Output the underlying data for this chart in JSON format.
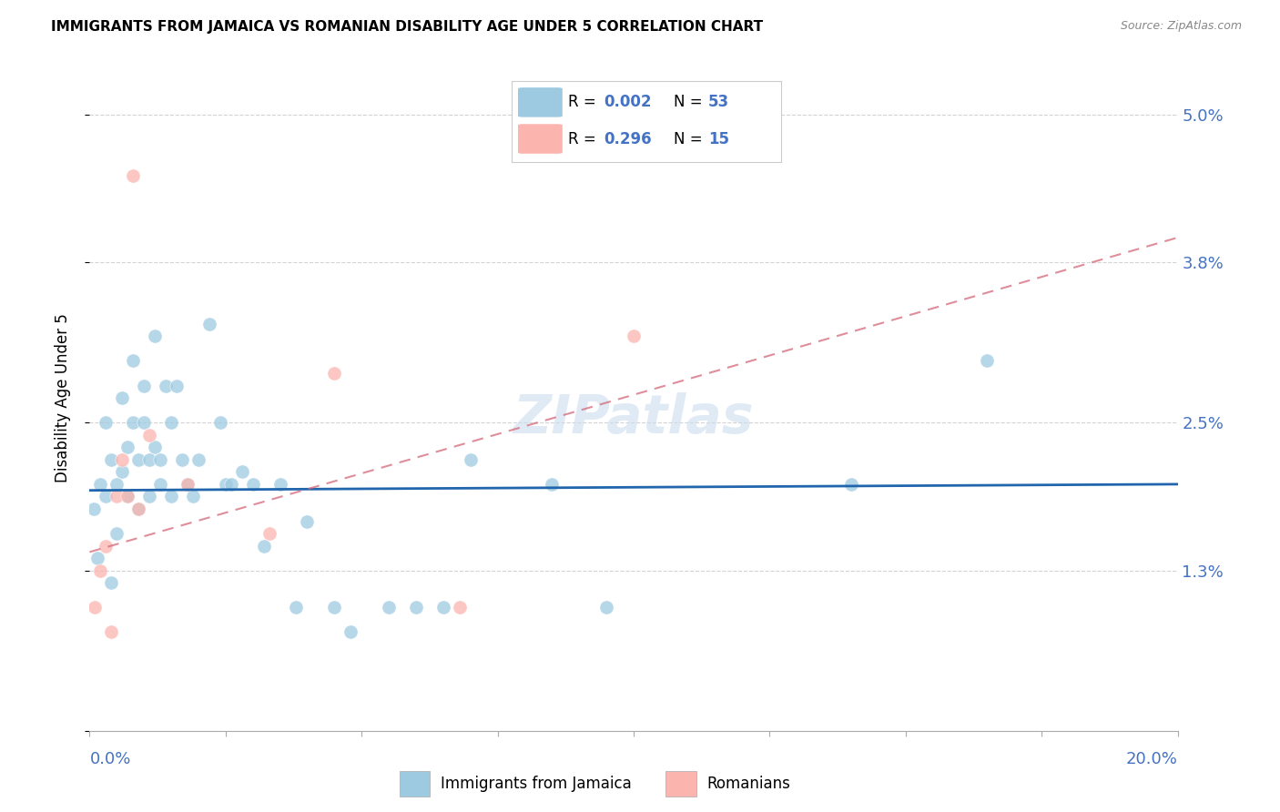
{
  "title": "IMMIGRANTS FROM JAMAICA VS ROMANIAN DISABILITY AGE UNDER 5 CORRELATION CHART",
  "source": "Source: ZipAtlas.com",
  "ylabel": "Disability Age Under 5",
  "legend_blue_r": "0.002",
  "legend_blue_n": "53",
  "legend_pink_r": "0.296",
  "legend_pink_n": "15",
  "legend_label_blue": "Immigrants from Jamaica",
  "legend_label_pink": "Romanians",
  "blue_color": "#9ecae1",
  "pink_color": "#fbb4ae",
  "blue_line_color": "#2166ac",
  "pink_line_color": "#d4687a",
  "watermark": "ZIPatlas",
  "blue_scatter_x": [
    0.0008,
    0.0015,
    0.002,
    0.003,
    0.003,
    0.004,
    0.004,
    0.005,
    0.005,
    0.006,
    0.006,
    0.007,
    0.007,
    0.008,
    0.008,
    0.009,
    0.009,
    0.01,
    0.01,
    0.011,
    0.011,
    0.012,
    0.012,
    0.013,
    0.013,
    0.014,
    0.015,
    0.015,
    0.016,
    0.017,
    0.018,
    0.019,
    0.02,
    0.022,
    0.024,
    0.025,
    0.026,
    0.028,
    0.03,
    0.032,
    0.035,
    0.038,
    0.04,
    0.045,
    0.048,
    0.055,
    0.06,
    0.065,
    0.07,
    0.085,
    0.095,
    0.14,
    0.165
  ],
  "blue_scatter_y": [
    0.018,
    0.014,
    0.02,
    0.025,
    0.019,
    0.012,
    0.022,
    0.02,
    0.016,
    0.021,
    0.027,
    0.023,
    0.019,
    0.025,
    0.03,
    0.022,
    0.018,
    0.025,
    0.028,
    0.022,
    0.019,
    0.023,
    0.032,
    0.02,
    0.022,
    0.028,
    0.019,
    0.025,
    0.028,
    0.022,
    0.02,
    0.019,
    0.022,
    0.033,
    0.025,
    0.02,
    0.02,
    0.021,
    0.02,
    0.015,
    0.02,
    0.01,
    0.017,
    0.01,
    0.008,
    0.01,
    0.01,
    0.01,
    0.022,
    0.02,
    0.01,
    0.02,
    0.03
  ],
  "pink_scatter_x": [
    0.001,
    0.002,
    0.003,
    0.004,
    0.005,
    0.006,
    0.007,
    0.008,
    0.009,
    0.011,
    0.018,
    0.033,
    0.045,
    0.068,
    0.1
  ],
  "pink_scatter_y": [
    0.01,
    0.013,
    0.015,
    0.008,
    0.019,
    0.022,
    0.019,
    0.045,
    0.018,
    0.024,
    0.02,
    0.016,
    0.029,
    0.01,
    0.032
  ],
  "blue_trend_x0": 0.0,
  "blue_trend_x1": 0.2,
  "blue_trend_y0": 0.0195,
  "blue_trend_y1": 0.02,
  "pink_trend_x0": 0.0,
  "pink_trend_x1": 0.2,
  "pink_trend_y0": 0.0145,
  "pink_trend_y1": 0.04,
  "xlim": [
    0.0,
    0.2
  ],
  "ylim": [
    0.0,
    0.054
  ],
  "ytick_positions": [
    0.0,
    0.013,
    0.025,
    0.038,
    0.05
  ],
  "ytick_labels": [
    "",
    "1.3%",
    "2.5%",
    "3.8%",
    "5.0%"
  ],
  "xtick_positions": [
    0.0,
    0.025,
    0.05,
    0.075,
    0.1,
    0.125,
    0.15,
    0.175,
    0.2
  ],
  "figsize": [
    14.06,
    8.92
  ],
  "dpi": 100,
  "marker_size": 120,
  "title_color": "#000000",
  "axis_label_color": "#4472c4",
  "grid_color": "#d3d3d3",
  "legend_r_color": "#000000",
  "legend_n_color": "#4472c4"
}
